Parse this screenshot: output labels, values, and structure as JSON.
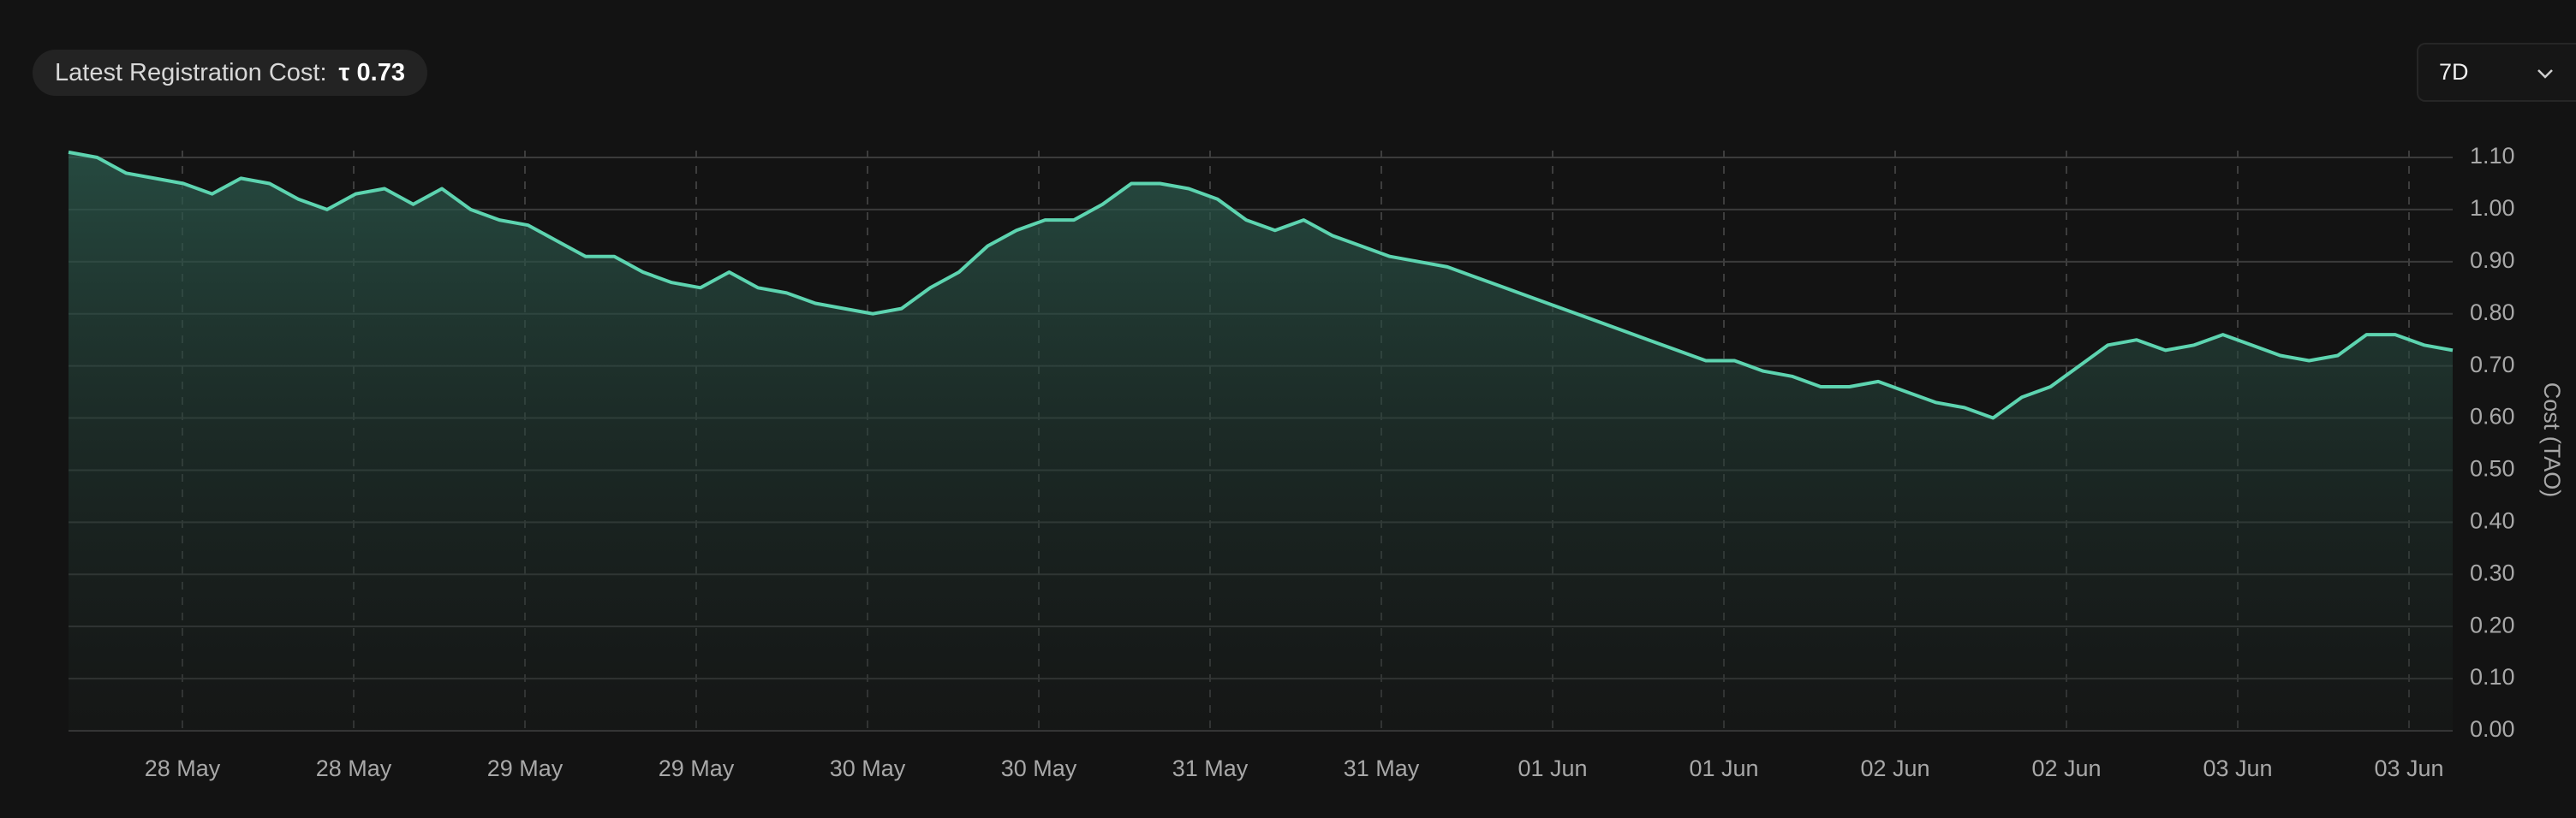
{
  "header": {
    "label": "Latest Registration Cost:",
    "value": "τ 0.73"
  },
  "range_selector": "7D",
  "chart_data": {
    "type": "line",
    "y_axis_label": "Cost (TAO)",
    "color": "#5dd4b0",
    "grid": true,
    "ylim": [
      0,
      1.1
    ],
    "yticks": [
      {
        "value": 0,
        "label": "0.00"
      },
      {
        "value": 0.1,
        "label": "0.10"
      },
      {
        "value": 0.2,
        "label": "0.20"
      },
      {
        "value": 0.3,
        "label": "0.30"
      },
      {
        "value": 0.4,
        "label": "0.40"
      },
      {
        "value": 0.5,
        "label": "0.50"
      },
      {
        "value": 0.6,
        "label": "0.60"
      },
      {
        "value": 0.7,
        "label": "0.70"
      },
      {
        "value": 0.8,
        "label": "0.80"
      },
      {
        "value": 0.9,
        "label": "0.90"
      },
      {
        "value": 1.0,
        "label": "1.00"
      },
      {
        "value": 1.1,
        "label": "1.10"
      }
    ],
    "xticks": [
      "28 May",
      "28 May",
      "29 May",
      "29 May",
      "30 May",
      "30 May",
      "31 May",
      "31 May",
      "01 Jun",
      "01 Jun",
      "02 Jun",
      "02 Jun",
      "03 Jun",
      "03 Jun"
    ],
    "values": [
      1.11,
      1.1,
      1.07,
      1.06,
      1.05,
      1.03,
      1.06,
      1.05,
      1.02,
      1.0,
      1.03,
      1.04,
      1.01,
      1.04,
      1.0,
      0.98,
      0.97,
      0.94,
      0.91,
      0.91,
      0.88,
      0.86,
      0.85,
      0.88,
      0.85,
      0.84,
      0.82,
      0.81,
      0.8,
      0.81,
      0.85,
      0.88,
      0.93,
      0.96,
      0.98,
      0.98,
      1.01,
      1.05,
      1.05,
      1.04,
      1.02,
      0.98,
      0.96,
      0.98,
      0.95,
      0.93,
      0.91,
      0.9,
      0.89,
      0.87,
      0.85,
      0.83,
      0.81,
      0.79,
      0.77,
      0.75,
      0.73,
      0.71,
      0.71,
      0.69,
      0.68,
      0.66,
      0.66,
      0.67,
      0.65,
      0.63,
      0.62,
      0.6,
      0.64,
      0.66,
      0.7,
      0.74,
      0.75,
      0.73,
      0.74,
      0.76,
      0.74,
      0.72,
      0.71,
      0.72,
      0.76,
      0.76,
      0.74,
      0.73
    ]
  }
}
